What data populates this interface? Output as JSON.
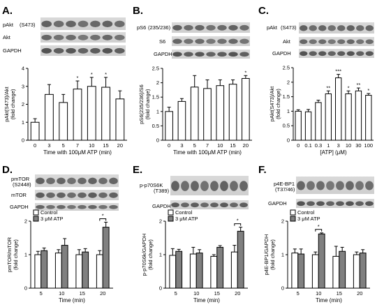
{
  "panel_letters": [
    "A.",
    "B.",
    "C.",
    "D.",
    "E.",
    "F."
  ],
  "blot_labels": {
    "A": [
      "pAkt",
      "(S473)",
      "Akt",
      "GAPDH"
    ],
    "B": [
      "pS6",
      "(235/236)",
      "S6",
      "GAPDH"
    ],
    "C": [
      "pAkt",
      "(S473)",
      "Akt",
      "GAPDH"
    ],
    "D": [
      "pmTOR",
      "(S2448)",
      "mTOR",
      "GAPDH"
    ],
    "E": [
      "p-p70S6K",
      "(T389)",
      "GAPDH"
    ],
    "F": [
      "p4E-BP1",
      "(T37/46)",
      "GAPDH"
    ]
  },
  "chart_data": [
    {
      "type": "bar",
      "title": "",
      "categories": [
        "0",
        "3",
        "5",
        "7",
        "10",
        "15",
        "20"
      ],
      "values": [
        1.0,
        2.55,
        2.1,
        2.85,
        3.0,
        2.95,
        2.3
      ],
      "errors": [
        0.2,
        0.55,
        0.45,
        0.45,
        0.5,
        0.55,
        0.45
      ],
      "significance": [
        "",
        "",
        "",
        "*",
        "*",
        "*",
        ""
      ],
      "xlabel": "Time with 100μM  ATP (min)",
      "ylabel": [
        "pAkt(S473)/Akt",
        "(fold change)"
      ],
      "ylim": [
        0,
        4
      ],
      "yticks": [
        "0",
        "1",
        "2",
        "3",
        "4"
      ],
      "grid": false
    },
    {
      "type": "bar",
      "title": "",
      "categories": [
        "0",
        "3",
        "5",
        "7",
        "10",
        "15",
        "20"
      ],
      "values": [
        1.0,
        1.35,
        1.85,
        1.8,
        1.9,
        1.95,
        2.15
      ],
      "errors": [
        0.15,
        0.1,
        0.4,
        0.3,
        0.2,
        0.15,
        0.1
      ],
      "significance": [
        "",
        "",
        "",
        "",
        "",
        "",
        "*"
      ],
      "xlabel": "Time with 100μM  ATP (min)",
      "ylabel": [
        "pS6(235/236)/S6",
        "(fold change)"
      ],
      "ylim": [
        0,
        2.5
      ],
      "yticks": [
        "0",
        "0.5",
        "1",
        "1.5",
        "2",
        "2.5"
      ],
      "grid": false
    },
    {
      "type": "bar",
      "title": "",
      "categories": [
        "0",
        "0.1",
        "0.3",
        "1",
        "3",
        "10",
        "30",
        "100"
      ],
      "values": [
        1.0,
        0.98,
        1.3,
        1.6,
        2.15,
        1.6,
        1.7,
        1.55
      ],
      "errors": [
        0.05,
        0.08,
        0.08,
        0.1,
        0.12,
        0.1,
        0.1,
        0.06
      ],
      "significance": [
        "",
        "",
        "",
        "**",
        "***",
        "*",
        "**",
        "*"
      ],
      "xlabel": "[ATP] (μM)",
      "ylabel": [
        "pAkt(S473)/Akt",
        "(fold change)"
      ],
      "ylim": [
        0,
        2.5
      ],
      "yticks": [
        "0",
        "0.5",
        "1",
        "1.5",
        "2",
        "2.5"
      ],
      "grid": false
    },
    {
      "type": "bar",
      "title": "",
      "categories": [
        "5",
        "10",
        "15",
        "20"
      ],
      "series": [
        {
          "name": "Control",
          "values": [
            1.0,
            1.05,
            1.0,
            1.0
          ],
          "errors": [
            0.1,
            0.1,
            0.15,
            0.12
          ],
          "color": "#ffffff"
        },
        {
          "name": "3 μM ATP",
          "values": [
            1.12,
            1.28,
            1.08,
            1.82
          ],
          "errors": [
            0.08,
            0.2,
            0.1,
            0.15
          ],
          "color": "#808080"
        }
      ],
      "significance": [
        "",
        "",
        "",
        "*"
      ],
      "legend": "top-left",
      "xlabel": "Time (min)",
      "ylabel": [
        "pmTOR/mTOR",
        "(fold change)"
      ],
      "ylim": [
        0,
        2
      ],
      "yticks": [
        "0",
        "1",
        "2"
      ],
      "grid": false
    },
    {
      "type": "bar",
      "title": "",
      "categories": [
        "5",
        "10",
        "15",
        "20"
      ],
      "series": [
        {
          "name": "Control",
          "values": [
            0.98,
            1.02,
            0.95,
            1.08
          ],
          "errors": [
            0.2,
            0.2,
            0.05,
            0.2
          ],
          "color": "#ffffff"
        },
        {
          "name": "3 μM ATP",
          "values": [
            1.1,
            1.05,
            1.22,
            1.7
          ],
          "errors": [
            0.06,
            0.1,
            0.05,
            0.12
          ],
          "color": "#808080"
        }
      ],
      "significance": [
        "",
        "",
        "",
        "*"
      ],
      "legend": "top-left",
      "xlabel": "Time (min)",
      "ylabel": [
        "p-p70S6k/GAPDH",
        "(fold change)"
      ],
      "ylim": [
        0,
        2
      ],
      "yticks": [
        "0",
        "1",
        "2"
      ],
      "grid": false
    },
    {
      "type": "bar",
      "title": "",
      "categories": [
        "5",
        "10",
        "15",
        "20"
      ],
      "series": [
        {
          "name": "Control",
          "values": [
            1.05,
            1.0,
            0.95,
            1.0
          ],
          "errors": [
            0.12,
            0.08,
            0.3,
            0.08
          ],
          "color": "#ffffff"
        },
        {
          "name": "3 μM ATP",
          "values": [
            1.02,
            1.62,
            1.1,
            1.05
          ],
          "errors": [
            0.15,
            0.03,
            0.12,
            0.1
          ],
          "color": "#808080"
        }
      ],
      "significance": [
        "",
        "*",
        "",
        ""
      ],
      "legend": "top-left",
      "xlabel": "Time (min)",
      "ylabel": [
        "p4E-BP1/GAPDH",
        "(fold change)"
      ],
      "ylim": [
        0,
        2
      ],
      "yticks": [
        "0",
        "1",
        "2"
      ],
      "grid": false
    }
  ]
}
